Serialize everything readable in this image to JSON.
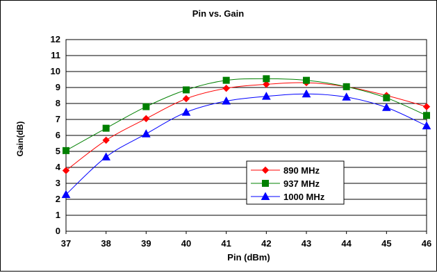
{
  "chart_data": {
    "type": "line",
    "title": "Pin vs. Gain",
    "xlabel": "Pin (dBm)",
    "ylabel": "Gain(dB)",
    "x": [
      37,
      38,
      39,
      40,
      41,
      42,
      43,
      44,
      45,
      46
    ],
    "xlim": [
      37,
      46
    ],
    "ylim": [
      0,
      12
    ],
    "x_ticks": [
      "37",
      "38",
      "39",
      "40",
      "41",
      "42",
      "43",
      "44",
      "45",
      "46"
    ],
    "y_ticks": [
      "0",
      "1",
      "2",
      "3",
      "4",
      "5",
      "6",
      "7",
      "8",
      "9",
      "10",
      "11",
      "12"
    ],
    "grid": true,
    "legend_position": "bottom-center",
    "series": [
      {
        "name": "890 MHz",
        "color": "#ff0000",
        "marker": "diamond",
        "values": [
          3.8,
          5.7,
          7.05,
          8.3,
          8.95,
          9.2,
          9.3,
          9.05,
          8.5,
          7.8
        ]
      },
      {
        "name": "937 MHz",
        "color": "#008000",
        "marker": "square",
        "values": [
          5.05,
          6.45,
          7.8,
          8.85,
          9.45,
          9.55,
          9.45,
          9.05,
          8.35,
          7.25
        ]
      },
      {
        "name": "1000 MHz",
        "color": "#0000ff",
        "marker": "triangle",
        "values": [
          2.3,
          4.65,
          6.1,
          7.45,
          8.15,
          8.45,
          8.6,
          8.4,
          7.75,
          6.6
        ]
      }
    ]
  }
}
